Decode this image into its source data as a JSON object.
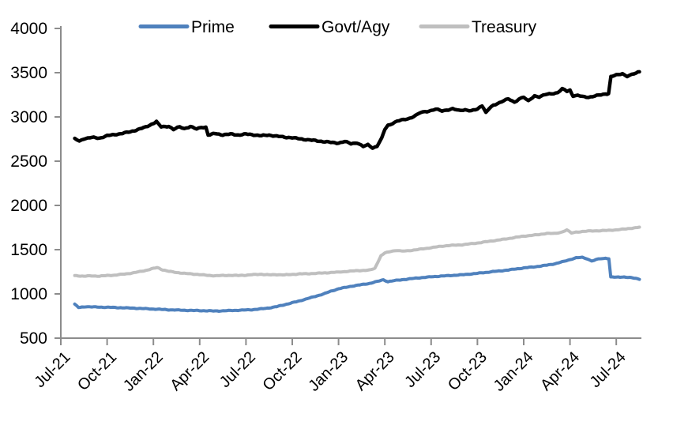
{
  "chart_data": {
    "type": "line",
    "title": "",
    "grid": false,
    "legend_position": "top",
    "x_unit": "months since Jul-2021",
    "x_axis": {
      "tick_labels": [
        "Jul-21",
        "Oct-21",
        "Jan-22",
        "Apr-22",
        "Jul-22",
        "Oct-22",
        "Jan-23",
        "Apr-23",
        "Jul-23",
        "Oct-23",
        "Jan-24",
        "Apr-24",
        "Jul-24"
      ],
      "tick_months": [
        0,
        3,
        6,
        9,
        12,
        15,
        18,
        21,
        24,
        27,
        30,
        33,
        36
      ],
      "domain_months": [
        0,
        37.6
      ]
    },
    "y_axis": {
      "tick_labels": [
        "500",
        "1000",
        "1500",
        "2000",
        "2500",
        "3000",
        "3500",
        "4000"
      ],
      "tick_values": [
        500,
        1000,
        1500,
        2000,
        2500,
        3000,
        3500,
        4000
      ],
      "range": [
        500,
        4000
      ]
    },
    "series": [
      {
        "name": "Prime",
        "color": "#4f81bd",
        "jitter": 4,
        "points": [
          [
            0.9,
            885
          ],
          [
            1.15,
            845
          ],
          [
            1.6,
            856
          ],
          [
            2,
            853
          ],
          [
            2.5,
            850
          ],
          [
            3,
            849
          ],
          [
            3.5,
            846
          ],
          [
            4,
            843
          ],
          [
            4.5,
            840
          ],
          [
            5,
            837
          ],
          [
            5.5,
            833
          ],
          [
            6,
            829
          ],
          [
            6.5,
            825
          ],
          [
            7,
            821
          ],
          [
            7.5,
            818
          ],
          [
            8,
            815
          ],
          [
            8.5,
            813
          ],
          [
            9,
            811
          ],
          [
            9.5,
            809
          ],
          [
            10,
            807
          ],
          [
            10.5,
            808
          ],
          [
            11,
            812
          ],
          [
            11.5,
            815
          ],
          [
            12,
            818
          ],
          [
            12.5,
            823
          ],
          [
            13,
            831
          ],
          [
            13.5,
            842
          ],
          [
            14,
            856
          ],
          [
            14.5,
            878
          ],
          [
            15,
            900
          ],
          [
            15.5,
            922
          ],
          [
            16,
            948
          ],
          [
            16.5,
            972
          ],
          [
            17,
            998
          ],
          [
            17.5,
            1030
          ],
          [
            18,
            1058
          ],
          [
            18.5,
            1075
          ],
          [
            19,
            1092
          ],
          [
            19.5,
            1105
          ],
          [
            20,
            1118
          ],
          [
            20.5,
            1140
          ],
          [
            20.9,
            1160
          ],
          [
            21.2,
            1138
          ],
          [
            21.6,
            1150
          ],
          [
            22,
            1158
          ],
          [
            22.5,
            1168
          ],
          [
            23,
            1178
          ],
          [
            23.5,
            1186
          ],
          [
            24,
            1193
          ],
          [
            24.5,
            1200
          ],
          [
            25,
            1205
          ],
          [
            25.5,
            1210
          ],
          [
            26,
            1216
          ],
          [
            26.5,
            1224
          ],
          [
            27,
            1232
          ],
          [
            27.5,
            1242
          ],
          [
            28,
            1252
          ],
          [
            28.5,
            1260
          ],
          [
            29,
            1270
          ],
          [
            29.5,
            1282
          ],
          [
            30,
            1293
          ],
          [
            30.5,
            1302
          ],
          [
            31,
            1312
          ],
          [
            31.5,
            1325
          ],
          [
            32,
            1340
          ],
          [
            32.5,
            1362
          ],
          [
            33,
            1388
          ],
          [
            33.4,
            1408
          ],
          [
            33.8,
            1412
          ],
          [
            34.1,
            1398
          ],
          [
            34.4,
            1372
          ],
          [
            34.7,
            1388
          ],
          [
            35,
            1398
          ],
          [
            35.3,
            1402
          ],
          [
            35.52,
            1400
          ],
          [
            35.64,
            1192
          ],
          [
            36,
            1188
          ],
          [
            36.5,
            1192
          ],
          [
            37,
            1182
          ],
          [
            37.5,
            1168
          ]
        ]
      },
      {
        "name": "Govt/Agy",
        "color": "#000000",
        "jitter": 7,
        "points": [
          [
            0.9,
            2758
          ],
          [
            1.2,
            2725
          ],
          [
            1.5,
            2755
          ],
          [
            2,
            2768
          ],
          [
            2.5,
            2760
          ],
          [
            3,
            2788
          ],
          [
            3.5,
            2800
          ],
          [
            4,
            2815
          ],
          [
            4.5,
            2832
          ],
          [
            5,
            2858
          ],
          [
            5.5,
            2885
          ],
          [
            6,
            2928
          ],
          [
            6.2,
            2945
          ],
          [
            6.5,
            2888
          ],
          [
            7,
            2895
          ],
          [
            7.3,
            2858
          ],
          [
            7.7,
            2888
          ],
          [
            8,
            2868
          ],
          [
            8.4,
            2892
          ],
          [
            8.8,
            2862
          ],
          [
            9.1,
            2882
          ],
          [
            9.4,
            2885
          ],
          [
            9.55,
            2795
          ],
          [
            10,
            2812
          ],
          [
            10.5,
            2798
          ],
          [
            11,
            2806
          ],
          [
            11.5,
            2796
          ],
          [
            12,
            2806
          ],
          [
            12.5,
            2798
          ],
          [
            13,
            2788
          ],
          [
            13.5,
            2795
          ],
          [
            14,
            2782
          ],
          [
            14.5,
            2772
          ],
          [
            15,
            2765
          ],
          [
            15.5,
            2752
          ],
          [
            16,
            2742
          ],
          [
            16.5,
            2732
          ],
          [
            17,
            2722
          ],
          [
            17.5,
            2712
          ],
          [
            18,
            2705
          ],
          [
            18.4,
            2722
          ],
          [
            18.8,
            2698
          ],
          [
            19.2,
            2708
          ],
          [
            19.6,
            2665
          ],
          [
            19.9,
            2685
          ],
          [
            20.2,
            2652
          ],
          [
            20.5,
            2668
          ],
          [
            20.8,
            2765
          ],
          [
            21,
            2858
          ],
          [
            21.2,
            2905
          ],
          [
            21.5,
            2928
          ],
          [
            21.8,
            2952
          ],
          [
            22.2,
            2968
          ],
          [
            22.6,
            2985
          ],
          [
            23,
            3015
          ],
          [
            23.3,
            3048
          ],
          [
            23.6,
            3060
          ],
          [
            24,
            3072
          ],
          [
            24.3,
            3088
          ],
          [
            24.7,
            3068
          ],
          [
            25,
            3078
          ],
          [
            25.4,
            3092
          ],
          [
            25.8,
            3072
          ],
          [
            26.2,
            3082
          ],
          [
            26.6,
            3068
          ],
          [
            27,
            3088
          ],
          [
            27.3,
            3128
          ],
          [
            27.55,
            3052
          ],
          [
            27.9,
            3118
          ],
          [
            28.3,
            3152
          ],
          [
            28.7,
            3185
          ],
          [
            29,
            3202
          ],
          [
            29.4,
            3165
          ],
          [
            29.7,
            3205
          ],
          [
            30,
            3225
          ],
          [
            30.3,
            3178
          ],
          [
            30.7,
            3238
          ],
          [
            31,
            3228
          ],
          [
            31.4,
            3252
          ],
          [
            31.8,
            3262
          ],
          [
            32.2,
            3275
          ],
          [
            32.5,
            3318
          ],
          [
            32.8,
            3288
          ],
          [
            33,
            3302
          ],
          [
            33.2,
            3232
          ],
          [
            33.5,
            3245
          ],
          [
            33.8,
            3228
          ],
          [
            34.2,
            3222
          ],
          [
            34.6,
            3238
          ],
          [
            35,
            3248
          ],
          [
            35.3,
            3258
          ],
          [
            35.5,
            3265
          ],
          [
            35.65,
            3458
          ],
          [
            36,
            3472
          ],
          [
            36.4,
            3488
          ],
          [
            36.7,
            3462
          ],
          [
            37,
            3478
          ],
          [
            37.3,
            3495
          ],
          [
            37.5,
            3512
          ]
        ]
      },
      {
        "name": "Treasury",
        "color": "#bfbfbf",
        "jitter": 4,
        "points": [
          [
            0.9,
            1207
          ],
          [
            1.5,
            1200
          ],
          [
            2,
            1204
          ],
          [
            2.5,
            1200
          ],
          [
            3,
            1208
          ],
          [
            3.5,
            1212
          ],
          [
            4,
            1222
          ],
          [
            4.5,
            1232
          ],
          [
            5,
            1248
          ],
          [
            5.5,
            1265
          ],
          [
            6,
            1288
          ],
          [
            6.25,
            1298
          ],
          [
            6.6,
            1272
          ],
          [
            7,
            1255
          ],
          [
            7.5,
            1242
          ],
          [
            8,
            1232
          ],
          [
            8.5,
            1225
          ],
          [
            9,
            1218
          ],
          [
            9.5,
            1210
          ],
          [
            10,
            1205
          ],
          [
            10.5,
            1208
          ],
          [
            11,
            1210
          ],
          [
            11.5,
            1208
          ],
          [
            12,
            1212
          ],
          [
            12.5,
            1218
          ],
          [
            13,
            1222
          ],
          [
            13.5,
            1215
          ],
          [
            14,
            1218
          ],
          [
            14.5,
            1215
          ],
          [
            15,
            1220
          ],
          [
            15.5,
            1226
          ],
          [
            16,
            1228
          ],
          [
            16.5,
            1232
          ],
          [
            17,
            1236
          ],
          [
            17.5,
            1242
          ],
          [
            18,
            1246
          ],
          [
            18.5,
            1254
          ],
          [
            19,
            1260
          ],
          [
            19.5,
            1265
          ],
          [
            20,
            1268
          ],
          [
            20.35,
            1288
          ],
          [
            20.55,
            1358
          ],
          [
            20.75,
            1432
          ],
          [
            21,
            1462
          ],
          [
            21.4,
            1482
          ],
          [
            21.8,
            1492
          ],
          [
            22.1,
            1482
          ],
          [
            22.5,
            1488
          ],
          [
            23,
            1498
          ],
          [
            23.5,
            1510
          ],
          [
            24,
            1522
          ],
          [
            24.5,
            1535
          ],
          [
            25,
            1545
          ],
          [
            25.5,
            1550
          ],
          [
            26,
            1555
          ],
          [
            26.5,
            1565
          ],
          [
            27,
            1575
          ],
          [
            27.5,
            1588
          ],
          [
            28,
            1600
          ],
          [
            28.5,
            1612
          ],
          [
            29,
            1625
          ],
          [
            29.5,
            1640
          ],
          [
            30,
            1652
          ],
          [
            30.5,
            1662
          ],
          [
            31,
            1670
          ],
          [
            31.5,
            1685
          ],
          [
            32,
            1682
          ],
          [
            32.4,
            1695
          ],
          [
            32.8,
            1722
          ],
          [
            33.1,
            1688
          ],
          [
            33.4,
            1698
          ],
          [
            33.8,
            1705
          ],
          [
            34.2,
            1710
          ],
          [
            34.6,
            1712
          ],
          [
            35,
            1715
          ],
          [
            35.5,
            1718
          ],
          [
            36,
            1724
          ],
          [
            36.5,
            1732
          ],
          [
            37,
            1742
          ],
          [
            37.5,
            1753
          ]
        ]
      }
    ]
  },
  "colors": {
    "axis": "#8c8c8c",
    "text": "#000000",
    "background": "#ffffff"
  }
}
